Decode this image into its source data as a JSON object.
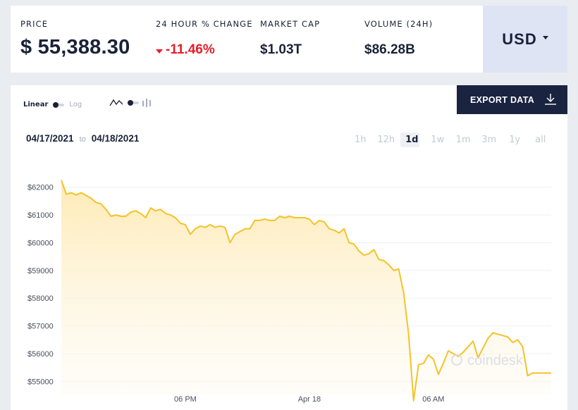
{
  "stats": {
    "price": {
      "label": "PRICE",
      "value": "$ 55,388.30"
    },
    "change": {
      "label": "24 HOUR % CHANGE",
      "value": "-11.46%",
      "direction": "down",
      "color": "#e3202b"
    },
    "market_cap": {
      "label": "MARKET CAP",
      "value": "$1.03T"
    },
    "volume": {
      "label": "VOLUME (24H)",
      "value": "$86.28B"
    }
  },
  "currency": {
    "selected": "USD"
  },
  "scale_toggle": {
    "linear": "Linear",
    "log": "Log",
    "active": "Linear"
  },
  "chart_type_toggle": {
    "options": [
      "line-chart-icon",
      "candlestick-icon"
    ],
    "active": "line-chart-icon"
  },
  "export": {
    "label": "EXPORT DATA",
    "icon": "download-icon"
  },
  "date_range": {
    "from": "04/17/2021",
    "to_word": "to",
    "to": "04/18/2021"
  },
  "periods": {
    "items": [
      "1h",
      "12h",
      "1d",
      "1w",
      "1m",
      "3m",
      "1y",
      "all"
    ],
    "active": "1d"
  },
  "watermark": "coindesk",
  "colors": {
    "accent": "#f5c227",
    "navy": "#1a2340",
    "negative": "#e3202b",
    "currency_bg": "#dfe4f5"
  },
  "chart_data": {
    "type": "area",
    "title": "",
    "xlabel": "",
    "ylabel": "",
    "y_tick_labels": [
      "$62000",
      "$61000",
      "$60000",
      "$59000",
      "$58000",
      "$57000",
      "$56000",
      "$55000"
    ],
    "y_ticks": [
      62000,
      61000,
      60000,
      59000,
      58000,
      57000,
      56000,
      55000
    ],
    "x_tick_labels": [
      "06 PM",
      "Apr 18",
      "06 AM"
    ],
    "x_ticks": [
      10,
      20,
      30
    ],
    "ylim": [
      54500,
      62500
    ],
    "xlim": [
      0,
      39.5
    ],
    "grid": true,
    "series": [
      {
        "color": "#f5c227",
        "x": [
          0,
          0.4,
          0.8,
          1.2,
          1.6,
          2.0,
          2.4,
          2.8,
          3.2,
          3.6,
          4.0,
          4.4,
          4.8,
          5.2,
          5.6,
          6.0,
          6.4,
          6.8,
          7.2,
          7.6,
          8.0,
          8.4,
          8.8,
          9.2,
          9.6,
          10.0,
          10.4,
          10.8,
          11.2,
          11.6,
          12.0,
          12.4,
          12.8,
          13.2,
          13.6,
          14.0,
          14.4,
          14.8,
          15.2,
          15.6,
          16.0,
          16.4,
          16.8,
          17.2,
          17.6,
          18.0,
          18.4,
          18.8,
          19.2,
          19.6,
          20.0,
          20.4,
          20.8,
          21.2,
          21.6,
          22.0,
          22.4,
          22.8,
          23.2,
          23.6,
          24.0,
          24.4,
          24.8,
          25.2,
          25.6,
          26.0,
          26.4,
          26.8,
          27.2,
          27.6,
          28.0,
          28.4,
          28.8,
          29.2,
          29.6,
          30.0,
          30.4,
          30.8,
          31.2,
          31.6,
          32.0,
          32.4,
          32.8,
          33.2,
          33.6,
          34.0,
          34.4,
          34.8,
          35.2,
          35.6,
          36.0,
          36.4,
          36.8,
          37.2,
          37.6,
          38.0,
          38.4,
          38.8,
          39.2,
          39.5
        ],
        "values": [
          62250,
          61750,
          61800,
          61720,
          61800,
          61700,
          61600,
          61450,
          61400,
          61200,
          60950,
          61000,
          60950,
          60950,
          61100,
          61150,
          61050,
          60900,
          61250,
          61150,
          61200,
          61050,
          61000,
          60900,
          60700,
          60650,
          60300,
          60500,
          60600,
          60550,
          60650,
          60550,
          60600,
          60550,
          60000,
          60300,
          60400,
          60500,
          60500,
          60800,
          60800,
          60850,
          60800,
          60800,
          60950,
          60900,
          60950,
          60900,
          60900,
          60900,
          60850,
          60650,
          60800,
          60750,
          60500,
          60450,
          60350,
          60500,
          60000,
          59950,
          59700,
          59550,
          59600,
          59750,
          59400,
          59350,
          59200,
          59000,
          59050,
          58200,
          56700,
          54300,
          55600,
          55650,
          55950,
          55800,
          55250,
          55650,
          56100,
          56000,
          55900,
          56050,
          56250,
          56450,
          55850,
          56200,
          56550,
          56750,
          56700,
          56650,
          56600,
          56400,
          56500,
          56250,
          55200,
          55300,
          55300,
          55300,
          55300,
          55300
        ]
      }
    ]
  }
}
